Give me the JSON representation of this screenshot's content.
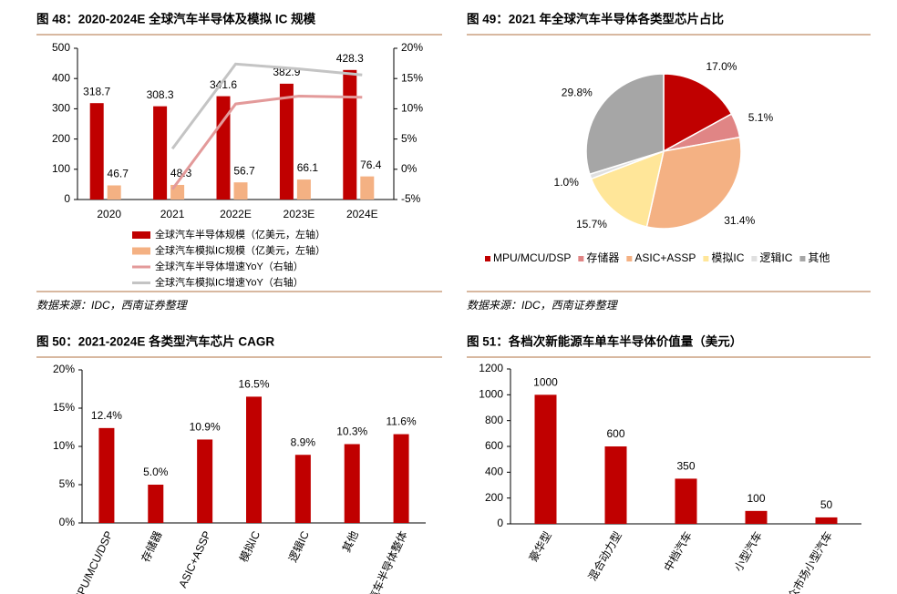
{
  "chart_data": [
    {
      "type": "bar",
      "title": "图 48：2020-2024E 全球汽车半导体及模拟 IC 规模",
      "categories": [
        "2020",
        "2021",
        "2022E",
        "2023E",
        "2024E"
      ],
      "series": [
        {
          "name": "全球汽车半导体规模（亿美元，左轴）",
          "type": "bar",
          "color": "#c00000",
          "values": [
            318.7,
            308.3,
            341.6,
            382.9,
            428.3
          ]
        },
        {
          "name": "全球汽车模拟IC规模（亿美元，左轴）",
          "type": "bar",
          "color": "#f4b183",
          "values": [
            46.7,
            48.3,
            56.7,
            66.1,
            76.4
          ]
        },
        {
          "name": "全球汽车半导体增速YoY（右轴）",
          "type": "line",
          "axis": "y2",
          "color": "#e39a9a",
          "values": [
            null,
            -3.3,
            10.8,
            12.1,
            11.9
          ]
        },
        {
          "name": "全球汽车模拟IC增速YoY（右轴）",
          "type": "line",
          "axis": "y2",
          "color": "#c4c4c4",
          "values": [
            null,
            3.4,
            17.4,
            16.6,
            15.6
          ]
        }
      ],
      "ylim": [
        0,
        500
      ],
      "yticks": [
        0,
        100,
        200,
        300,
        400,
        500
      ],
      "y2lim": [
        -5,
        20
      ],
      "y2ticks": [
        {
          "value": -5,
          "label": "-5%"
        },
        {
          "value": 0,
          "label": "0%"
        },
        {
          "value": 5,
          "label": "5%"
        },
        {
          "value": 10,
          "label": "10%"
        },
        {
          "value": 15,
          "label": "15%"
        },
        {
          "value": 20,
          "label": "20%"
        }
      ],
      "source": "数据来源：IDC，西南证券整理"
    },
    {
      "type": "pie",
      "title": "图 49：2021 年全球汽车半导体各类型芯片占比",
      "categories": [
        "MPU/MCU/DSP",
        "存储器",
        "ASIC+ASSP",
        "模拟IC",
        "逻辑IC",
        "其他"
      ],
      "values": [
        17.0,
        5.1,
        31.4,
        15.7,
        1.0,
        29.8
      ],
      "value_labels": [
        "17.0%",
        "5.1%",
        "31.4%",
        "15.7%",
        "1.0%",
        "29.8%"
      ],
      "colors": [
        "#c00000",
        "#e08585",
        "#f4b183",
        "#ffe699",
        "#e0e0e0",
        "#a6a6a6"
      ],
      "legend": "bottom",
      "source": "数据来源：IDC，西南证券整理"
    },
    {
      "type": "bar",
      "title": "图 50：2021-2024E 各类型汽车芯片 CAGR",
      "categories": [
        "MPU/MCU/DSP",
        "存储器",
        "ASIC+ASSP",
        "模拟IC",
        "逻辑IC",
        "其他",
        "汽车半导体整体"
      ],
      "values": [
        12.4,
        5.0,
        10.9,
        16.5,
        8.9,
        10.3,
        11.6
      ],
      "value_labels": [
        "12.4%",
        "5.0%",
        "10.9%",
        "16.5%",
        "8.9%",
        "10.3%",
        "11.6%"
      ],
      "color": "#c00000",
      "ylim": [
        0,
        20
      ],
      "yticks": [
        {
          "value": 0,
          "label": "0%"
        },
        {
          "value": 5,
          "label": "5%"
        },
        {
          "value": 10,
          "label": "10%"
        },
        {
          "value": 15,
          "label": "15%"
        },
        {
          "value": 20,
          "label": "20%"
        }
      ]
    },
    {
      "type": "bar",
      "title": "图 51：各档次新能源车单车半导体价值量（美元）",
      "categories": [
        "豪华型",
        "混合动力型",
        "中档汽车",
        "小型汽车",
        "大众市场小型汽车"
      ],
      "values": [
        1000,
        600,
        350,
        100,
        50
      ],
      "color": "#c00000",
      "ylim": [
        0,
        1200
      ],
      "yticks": [
        0,
        200,
        400,
        600,
        800,
        1000,
        1200
      ]
    }
  ]
}
